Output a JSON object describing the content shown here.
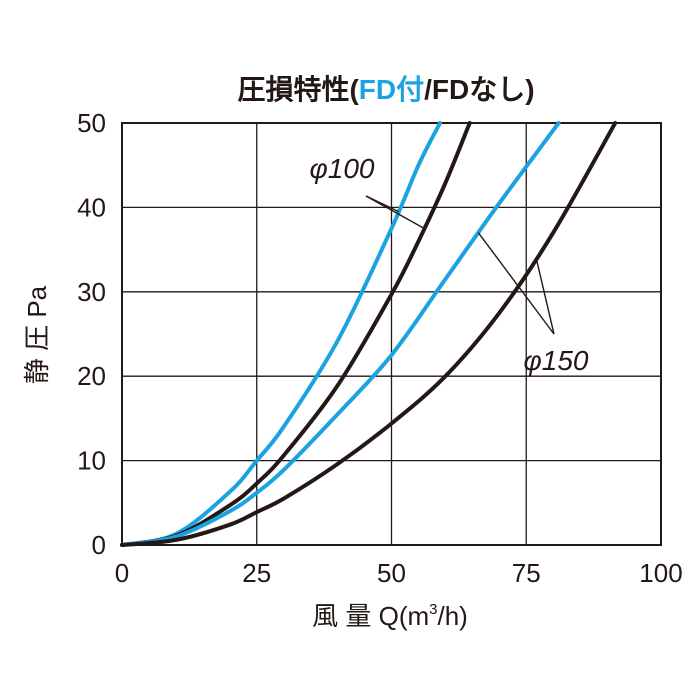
{
  "chart_data": {
    "type": "line",
    "title": {
      "prefix": "圧損特性(",
      "fd_with": "FD付",
      "slash": "/",
      "fd_without": "FDなし",
      "suffix": ")"
    },
    "xlabel": {
      "text": "風 量 Q(m",
      "sup": "3",
      "tail": "/h)"
    },
    "ylabel": "静 圧 Pa",
    "xlim": [
      0,
      100
    ],
    "ylim": [
      0,
      50
    ],
    "x_ticks": [
      "0",
      "25",
      "50",
      "75",
      "100"
    ],
    "y_ticks": [
      "0",
      "10",
      "20",
      "30",
      "40",
      "50"
    ],
    "grid": true,
    "colors": {
      "fd_with": "#1aa3e0",
      "fd_without": "#231815"
    },
    "callouts": [
      {
        "label": "φ100",
        "targets": [
          "φ100 FD付",
          "φ100 FDなし"
        ]
      },
      {
        "label": "φ150",
        "targets": [
          "φ150 FD付",
          "φ150 FDなし"
        ]
      }
    ],
    "series": [
      {
        "key": "d100_fd",
        "group": "φ100",
        "fd": "fd_with",
        "x": [
          0,
          10,
          20,
          25,
          30,
          40,
          50,
          55,
          59
        ],
        "y": [
          0,
          1.3,
          6.3,
          10.0,
          14.0,
          24.2,
          37.5,
          45.0,
          50.0
        ]
      },
      {
        "key": "d100_nofd",
        "group": "φ100",
        "fd": "fd_without",
        "x": [
          0,
          10,
          20,
          25,
          30,
          40,
          50,
          55,
          60,
          64.5
        ],
        "y": [
          0,
          1.1,
          4.7,
          7.3,
          10.6,
          18.9,
          29.7,
          36.0,
          42.9,
          50.0
        ]
      },
      {
        "key": "d150_fd",
        "group": "φ150",
        "fd": "fd_with",
        "x": [
          0,
          10,
          20,
          25,
          30,
          40,
          50,
          60,
          70,
          81
        ],
        "y": [
          0,
          1.0,
          4.0,
          6.2,
          8.9,
          15.5,
          22.5,
          31.5,
          40.5,
          50.0
        ]
      },
      {
        "key": "d150_nofd",
        "group": "φ150",
        "fd": "fd_without",
        "x": [
          0,
          10,
          20,
          25,
          30,
          40,
          50,
          60,
          70,
          80,
          91.5
        ],
        "y": [
          0,
          0.6,
          2.4,
          3.9,
          5.5,
          9.6,
          14.4,
          20.0,
          27.5,
          37.0,
          50.0
        ]
      }
    ]
  }
}
